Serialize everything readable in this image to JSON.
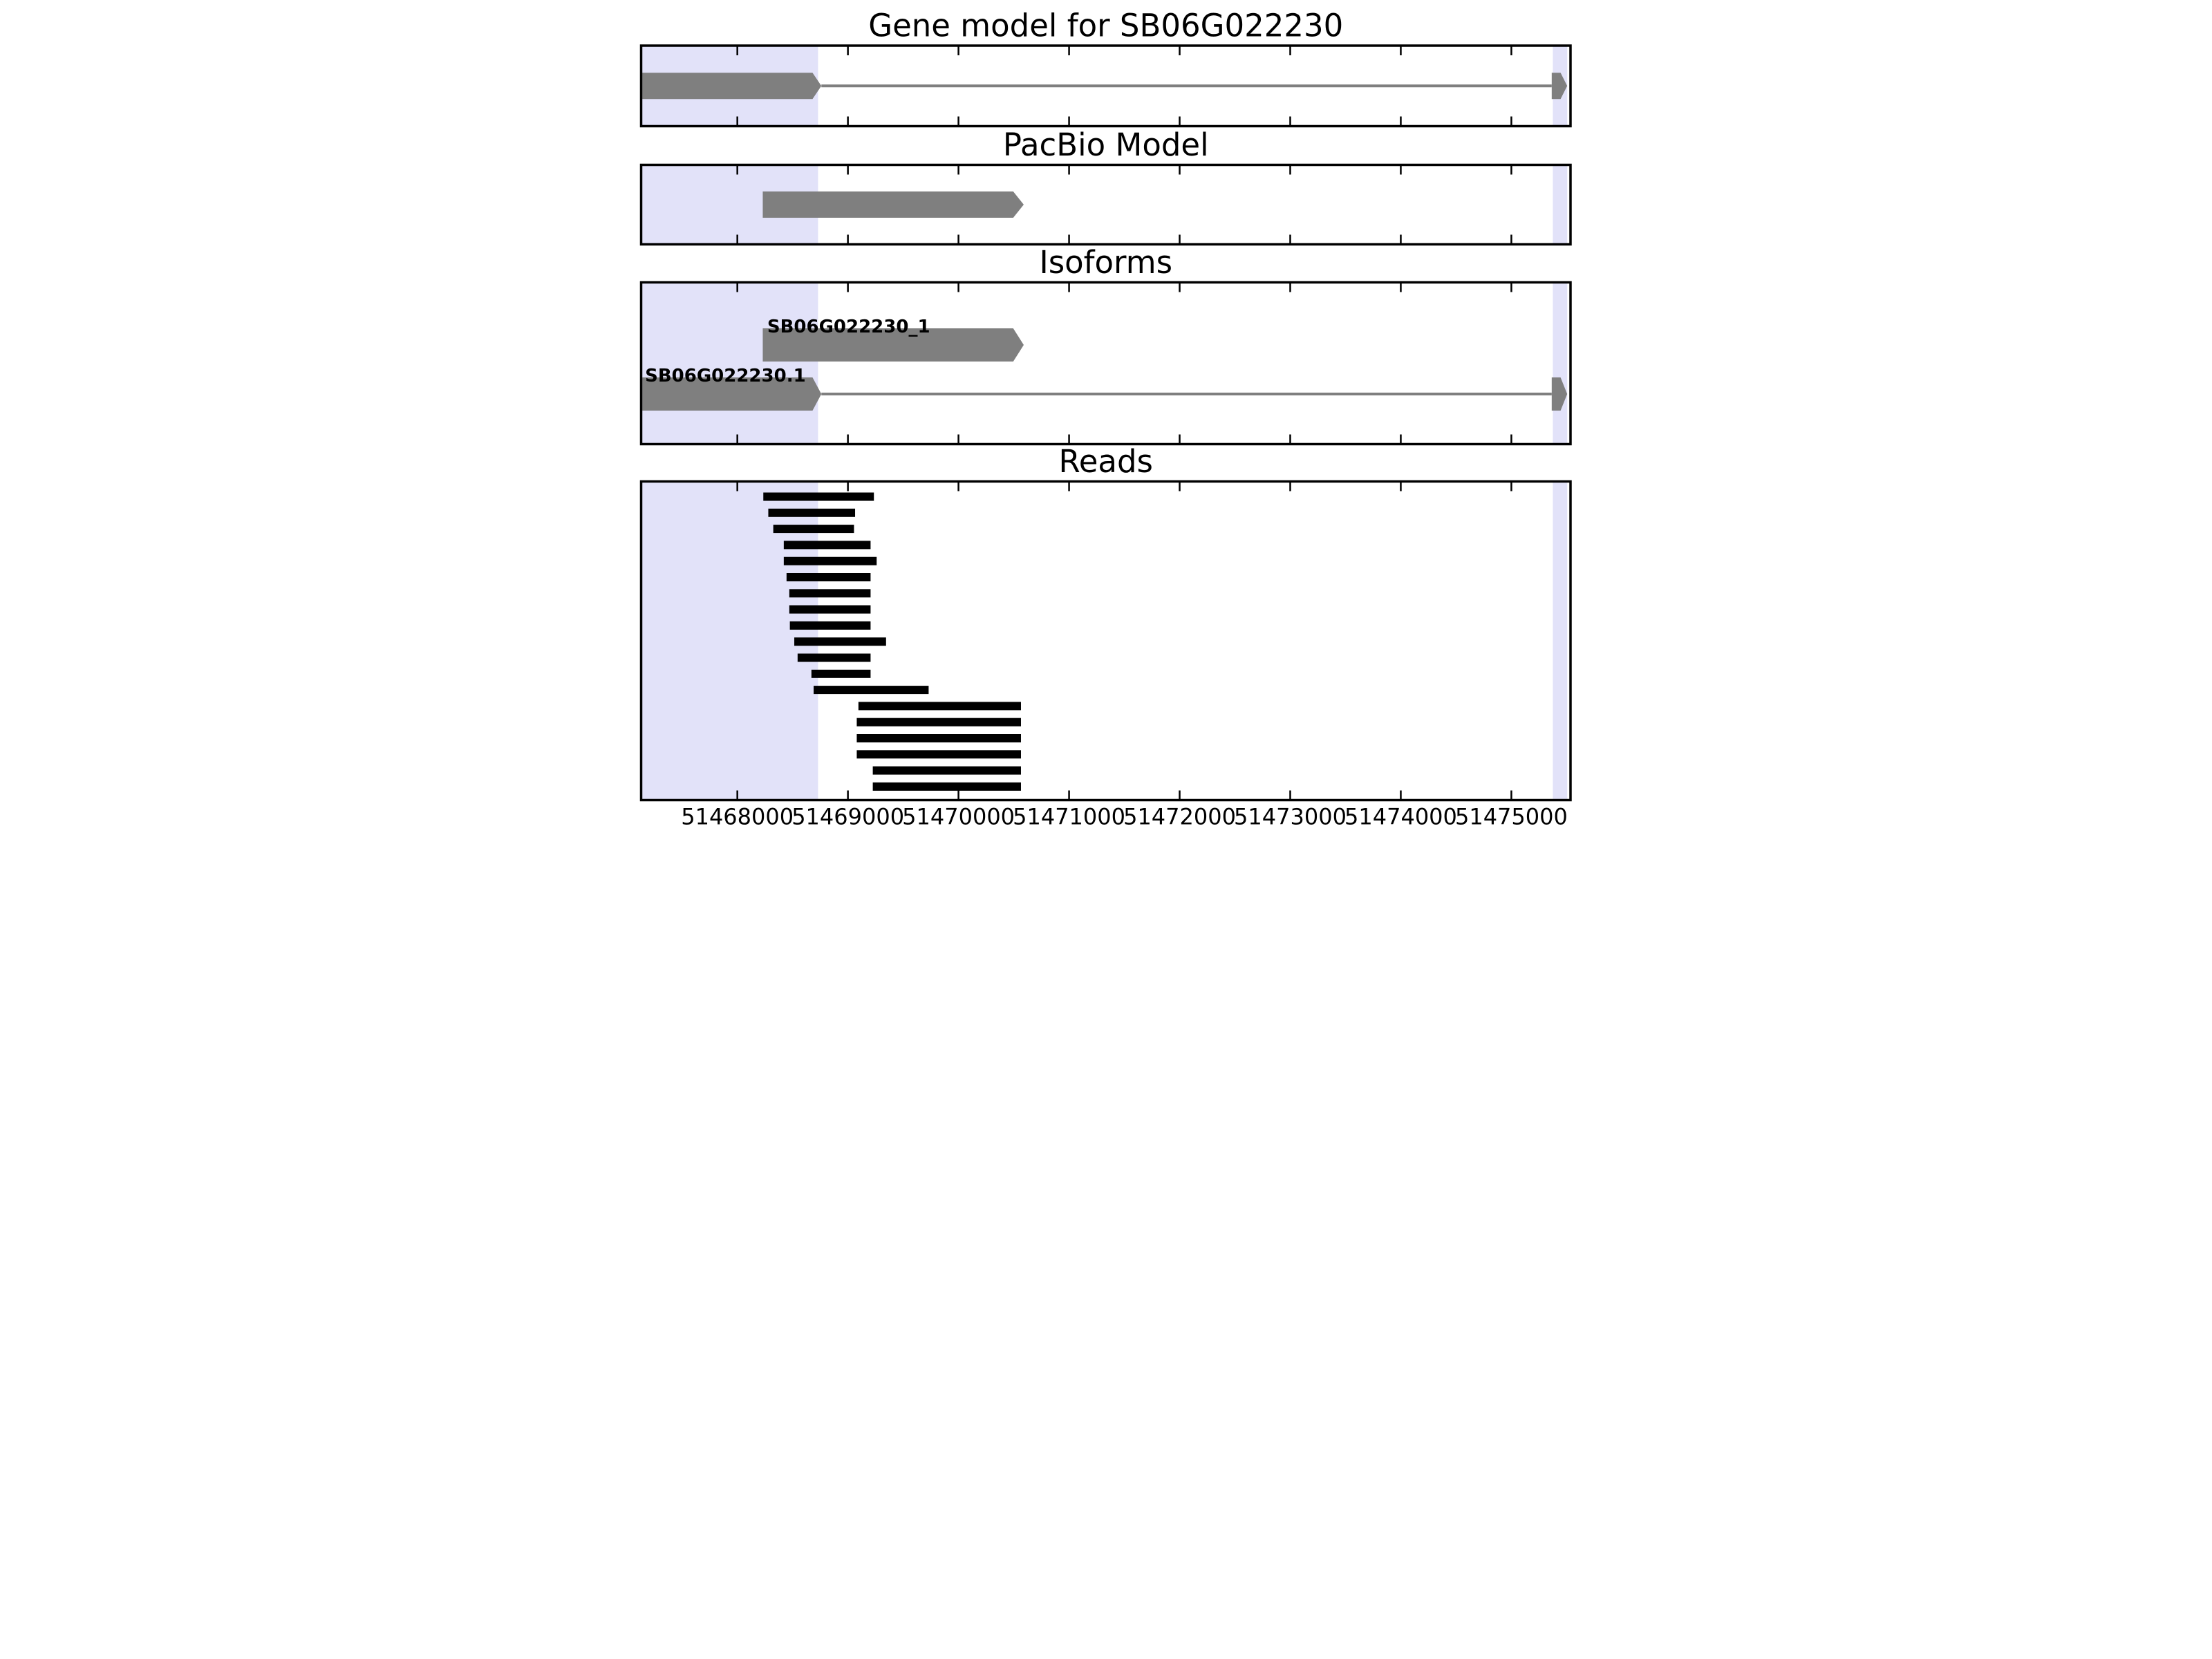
{
  "figure": {
    "title": "Gene model for SB06G022230"
  },
  "chart_data": {
    "type": "gene-model-tracks",
    "title": "Gene model for SB06G022230",
    "x_axis": {
      "min": 51467130,
      "max": 51475535,
      "tick_values": [
        51468000,
        51469000,
        51470000,
        51471000,
        51472000,
        51473000,
        51474000,
        51475000
      ],
      "tick_labels": [
        "51468000",
        "51469000",
        "51470000",
        "51471000",
        "51472000",
        "51473000",
        "51474000",
        "51475000"
      ],
      "grid": false
    },
    "highlight_regions": [
      {
        "name": "gene-start-region",
        "start": 51467140,
        "end": 51468730
      },
      {
        "name": "gene-end-region",
        "start": 51475375,
        "end": 51475505
      }
    ],
    "colors": {
      "feature_gray": "#7f7f7f",
      "read_black": "#000000",
      "highlight_lavender": "#e2e2f9",
      "axis_black": "#000000",
      "background": "#ffffff"
    },
    "panels": [
      {
        "id": "gene-model",
        "title": "Gene model for SB06G022230",
        "kind": "features",
        "features": [
          {
            "shape": "gene",
            "label": "",
            "exon": {
              "start": 51467140,
              "body_end": 51468680,
              "tip": 51468760
            },
            "intron_end": 51475365,
            "terminal": {
              "start": 51475365,
              "shoulder": 51475445,
              "tip": 51475505
            }
          }
        ]
      },
      {
        "id": "pacbio-model",
        "title": "PacBio Model",
        "kind": "features",
        "features": [
          {
            "shape": "arrow",
            "label": "",
            "start": 51468230,
            "body_end": 51470495,
            "tip": 51470590
          }
        ]
      },
      {
        "id": "isoforms",
        "title": "Isoforms",
        "kind": "features",
        "features": [
          {
            "shape": "arrow",
            "label": "SB06G022230_1",
            "label_x": 51468270,
            "start": 51468230,
            "body_end": 51470495,
            "tip": 51470590
          },
          {
            "shape": "gene",
            "label": "SB06G022230.1",
            "label_x": 51467165,
            "exon": {
              "start": 51467140,
              "body_end": 51468680,
              "tip": 51468760
            },
            "intron_end": 51475365,
            "terminal": {
              "start": 51475365,
              "shoulder": 51475445,
              "tip": 51475505
            }
          }
        ]
      },
      {
        "id": "reads",
        "title": "Reads",
        "kind": "reads",
        "reads": [
          [
            51468235,
            51469235
          ],
          [
            51468280,
            51469065
          ],
          [
            51468325,
            51469055
          ],
          [
            51468420,
            51469205
          ],
          [
            51468420,
            51469260
          ],
          [
            51468445,
            51469205
          ],
          [
            51468470,
            51469205
          ],
          [
            51468470,
            51469205
          ],
          [
            51468475,
            51469205
          ],
          [
            51468515,
            51469345
          ],
          [
            51468545,
            51469205
          ],
          [
            51468670,
            51469205
          ],
          [
            51468690,
            51469730
          ],
          [
            51469095,
            51470565
          ],
          [
            51469080,
            51470565
          ],
          [
            51469080,
            51470565
          ],
          [
            51469080,
            51470565
          ],
          [
            51469225,
            51470565
          ],
          [
            51469225,
            51470565
          ]
        ]
      }
    ]
  }
}
